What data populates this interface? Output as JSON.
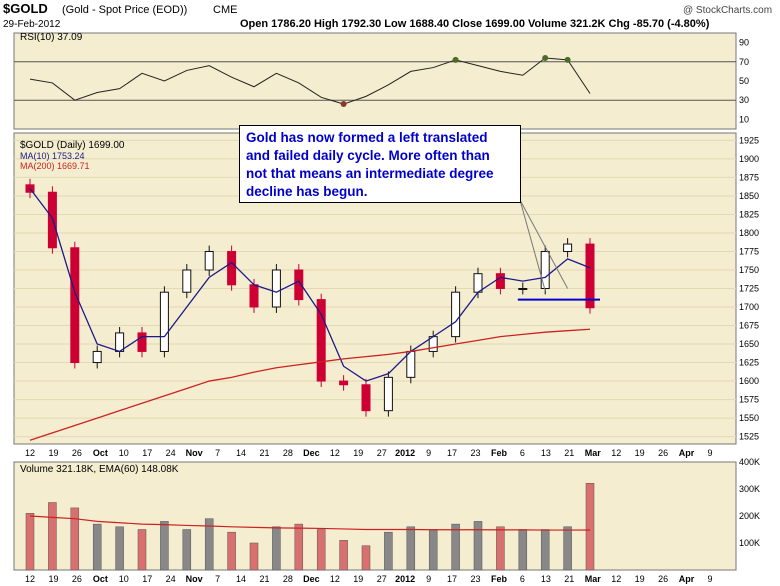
{
  "header": {
    "symbol": "$GOLD",
    "description": "(Gold - Spot Price (EOD))",
    "exchange": "CME",
    "date": "29-Feb-2012",
    "copyright": "@ StockCharts.com",
    "ohlc": "Open 1786.20  High 1792.30  Low 1688.40  Close 1699.00  Volume 321.2K  Chg -85.70 (-4.80%)"
  },
  "annotation": "Gold has now formed a left translated and failed daily cycle. More often than not that means an intermediate degree decline has begun.",
  "colors": {
    "panel_bg": "#f5edcf",
    "up_candle": "#111111",
    "down_candle": "#cc0033",
    "ma10": "#1a1a8c",
    "ma200": "#cc2222",
    "rsi_over": "#4a6b2a",
    "rsi_under": "#8b3a2a",
    "vol_bar_up": "#888888",
    "vol_bar_down": "#d97070"
  },
  "chart_data": [
    {
      "type": "line",
      "title": "RSI(10) 37.09",
      "ylim": [
        0,
        100
      ],
      "yticks": [
        "10",
        "30",
        "50",
        "70",
        "90"
      ],
      "yticks_values": [
        10,
        30,
        50,
        70,
        90
      ],
      "x": [
        "2011-09-12",
        "2011-09-19",
        "2011-09-26",
        "2011-10-03",
        "2011-10-10",
        "2011-10-17",
        "2011-10-24",
        "2011-10-31",
        "2011-11-07",
        "2011-11-14",
        "2011-11-21",
        "2011-11-28",
        "2011-12-05",
        "2011-12-12",
        "2011-12-19",
        "2011-12-27",
        "2012-01-03",
        "2012-01-09",
        "2012-01-17",
        "2012-01-23",
        "2012-01-30",
        "2012-02-06",
        "2012-02-13",
        "2012-02-21",
        "2012-02-27",
        "2012-02-29"
      ],
      "values": [
        52,
        48,
        30,
        38,
        42,
        58,
        50,
        61,
        66,
        54,
        44,
        58,
        48,
        33,
        26,
        34,
        46,
        60,
        64,
        72,
        66,
        60,
        56,
        74,
        72,
        37
      ]
    },
    {
      "type": "bar",
      "title": "$GOLD (Daily) 1699.00",
      "legend": [
        "MA(10) 1753.24",
        "MA(200) 1669.71"
      ],
      "ylim": [
        1515,
        1935
      ],
      "yticks": [
        "1525",
        "1550",
        "1575",
        "1600",
        "1625",
        "1650",
        "1675",
        "1700",
        "1725",
        "1750",
        "1775",
        "1800",
        "1825",
        "1850",
        "1875",
        "1900",
        "1925"
      ],
      "yticks_values": [
        1525,
        1550,
        1575,
        1600,
        1625,
        1650,
        1675,
        1700,
        1725,
        1750,
        1775,
        1800,
        1825,
        1850,
        1875,
        1900,
        1925
      ],
      "xticks": [
        "12",
        "19",
        "26",
        "Oct",
        "10",
        "17",
        "24",
        "Nov",
        "7",
        "14",
        "21",
        "28",
        "Dec",
        "12",
        "19",
        "27",
        "2012",
        "9",
        "17",
        "23",
        "Feb",
        "6",
        "13",
        "21",
        "Mar",
        "12",
        "19",
        "26",
        "Apr",
        "9"
      ],
      "x": [
        "2011-09-12",
        "2011-09-19",
        "2011-09-26",
        "2011-10-03",
        "2011-10-10",
        "2011-10-17",
        "2011-10-24",
        "2011-10-31",
        "2011-11-07",
        "2011-11-14",
        "2011-11-21",
        "2011-11-28",
        "2011-12-05",
        "2011-12-12",
        "2011-12-19",
        "2011-12-27",
        "2012-01-03",
        "2012-01-09",
        "2012-01-17",
        "2012-01-23",
        "2012-01-30",
        "2012-02-06",
        "2012-02-13",
        "2012-02-21",
        "2012-02-27",
        "2012-02-29"
      ],
      "series": [
        {
          "name": "MA(10) 1753.24",
          "values": [
            1860,
            1820,
            1720,
            1650,
            1640,
            1660,
            1660,
            1700,
            1740,
            1760,
            1730,
            1720,
            1735,
            1690,
            1620,
            1600,
            1610,
            1640,
            1660,
            1680,
            1720,
            1740,
            1735,
            1740,
            1765,
            1753
          ]
        },
        {
          "name": "MA(200) 1669.71",
          "values": [
            1520,
            1530,
            1540,
            1550,
            1560,
            1570,
            1580,
            1590,
            1600,
            1605,
            1612,
            1618,
            1622,
            1626,
            1630,
            1633,
            1636,
            1640,
            1645,
            1650,
            1655,
            1660,
            1663,
            1666,
            1668,
            1670
          ]
        }
      ],
      "closes": [
        1855,
        1780,
        1625,
        1640,
        1665,
        1640,
        1720,
        1750,
        1775,
        1730,
        1700,
        1750,
        1710,
        1600,
        1595,
        1560,
        1605,
        1640,
        1660,
        1720,
        1745,
        1725,
        1725,
        1775,
        1785,
        1699
      ],
      "support_level": 1710
    },
    {
      "type": "bar",
      "title": "Volume 321.18K, EMA(60) 148.08K",
      "ylim": [
        0,
        400000
      ],
      "yticks": [
        "100K",
        "200K",
        "300K",
        "400K"
      ],
      "yticks_values": [
        100000,
        200000,
        300000,
        400000
      ],
      "values": [
        210000,
        250000,
        230000,
        170000,
        160000,
        150000,
        180000,
        150000,
        190000,
        140000,
        100000,
        160000,
        170000,
        150000,
        110000,
        90000,
        140000,
        160000,
        150000,
        170000,
        180000,
        160000,
        150000,
        150000,
        160000,
        321180
      ],
      "ema60": [
        200000,
        195000,
        190000,
        180000,
        175000,
        170000,
        168000,
        165000,
        163000,
        160000,
        158000,
        156000,
        155000,
        154000,
        152000,
        150000,
        150000,
        150000,
        149000,
        149000,
        149000,
        148500,
        148500,
        148000,
        148000,
        148080
      ]
    }
  ]
}
